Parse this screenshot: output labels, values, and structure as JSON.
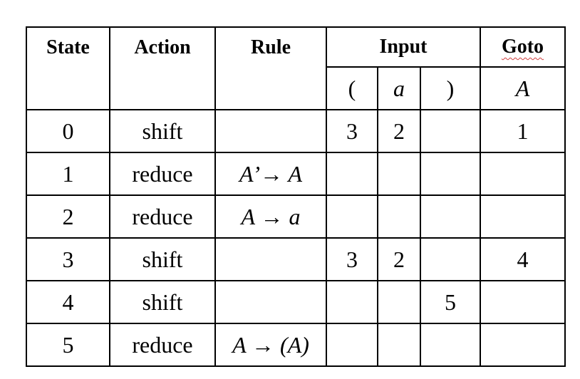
{
  "table": {
    "headers": {
      "state": "State",
      "action": "Action",
      "rule": "Rule",
      "input": "Input",
      "goto": "Goto"
    },
    "subheaders": {
      "lparen": "(",
      "a": "a",
      "rparen": ")",
      "goto_A": "A"
    },
    "rows": [
      {
        "state": "0",
        "action": "shift",
        "rule": "",
        "lparen": "3",
        "a": "2",
        "rparen": "",
        "goto": "1"
      },
      {
        "state": "1",
        "action": "reduce",
        "rule": "A’→ A",
        "lparen": "",
        "a": "",
        "rparen": "",
        "goto": ""
      },
      {
        "state": "2",
        "action": "reduce",
        "rule": "A → a",
        "lparen": "",
        "a": "",
        "rparen": "",
        "goto": ""
      },
      {
        "state": "3",
        "action": "shift",
        "rule": "",
        "lparen": "3",
        "a": "2",
        "rparen": "",
        "goto": "4"
      },
      {
        "state": "4",
        "action": "shift",
        "rule": "",
        "lparen": "",
        "a": "",
        "rparen": "5",
        "goto": ""
      },
      {
        "state": "5",
        "action": "reduce",
        "rule": "A → (A)",
        "lparen": "",
        "a": "",
        "rparen": "",
        "goto": ""
      }
    ]
  }
}
